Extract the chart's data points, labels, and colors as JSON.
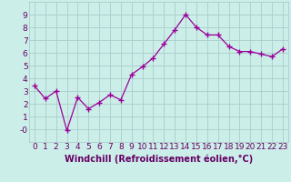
{
  "x": [
    0,
    1,
    2,
    3,
    4,
    5,
    6,
    7,
    8,
    9,
    10,
    11,
    12,
    13,
    14,
    15,
    16,
    17,
    18,
    19,
    20,
    21,
    22,
    23
  ],
  "y": [
    3.4,
    2.4,
    3.0,
    -0.1,
    2.5,
    1.6,
    2.1,
    2.7,
    2.3,
    4.3,
    4.9,
    5.6,
    6.7,
    7.8,
    9.0,
    8.0,
    7.4,
    7.4,
    6.5,
    6.1,
    6.1,
    5.9,
    5.7,
    6.3
  ],
  "line_color": "#990099",
  "marker": "+",
  "marker_size": 4,
  "bg_color": "#cceee8",
  "grid_color": "#aacccc",
  "xlabel": "Windchill (Refroidissement éolien,°C)",
  "xlabel_fontsize": 7,
  "tick_fontsize": 6.5,
  "ylim": [
    -1,
    10
  ],
  "xlim": [
    -0.5,
    23.5
  ],
  "yticks": [
    0,
    1,
    2,
    3,
    4,
    5,
    6,
    7,
    8,
    9
  ],
  "ytick_labels": [
    "-0",
    "1",
    "2",
    "3",
    "4",
    "5",
    "6",
    "7",
    "8",
    "9"
  ],
  "xticks": [
    0,
    1,
    2,
    3,
    4,
    5,
    6,
    7,
    8,
    9,
    10,
    11,
    12,
    13,
    14,
    15,
    16,
    17,
    18,
    19,
    20,
    21,
    22,
    23
  ],
  "tick_color": "#660066",
  "axes_label_color": "#660066"
}
